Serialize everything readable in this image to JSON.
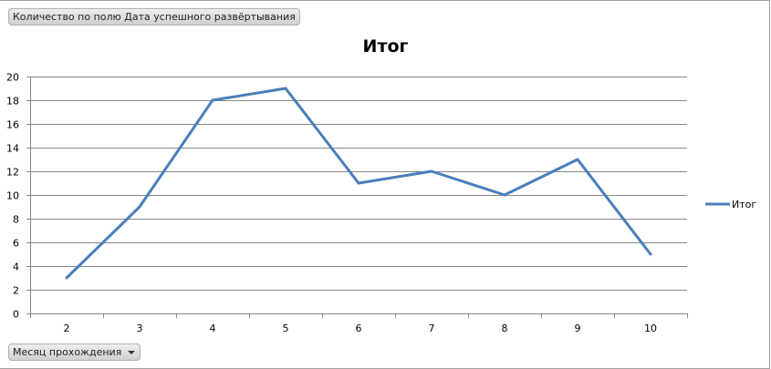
{
  "filter_button": "Количество по полю Дата успешного развёртывания",
  "axis_button": "Месяц прохождения",
  "axis_button_icon": "dropdown-arrow-icon",
  "chart_data": {
    "type": "line",
    "title": "Итог",
    "categories": [
      "2",
      "3",
      "4",
      "5",
      "6",
      "7",
      "8",
      "9",
      "10"
    ],
    "series": [
      {
        "name": "Итог",
        "values": [
          3,
          9,
          18,
          19,
          11,
          12,
          10,
          13,
          5
        ],
        "color": "#4a7ebb"
      }
    ],
    "ylim": [
      0,
      20
    ],
    "yticks": [
      "0",
      "2",
      "4",
      "6",
      "8",
      "10",
      "12",
      "14",
      "16",
      "18",
      "20"
    ],
    "grid": true,
    "legend": "right"
  }
}
